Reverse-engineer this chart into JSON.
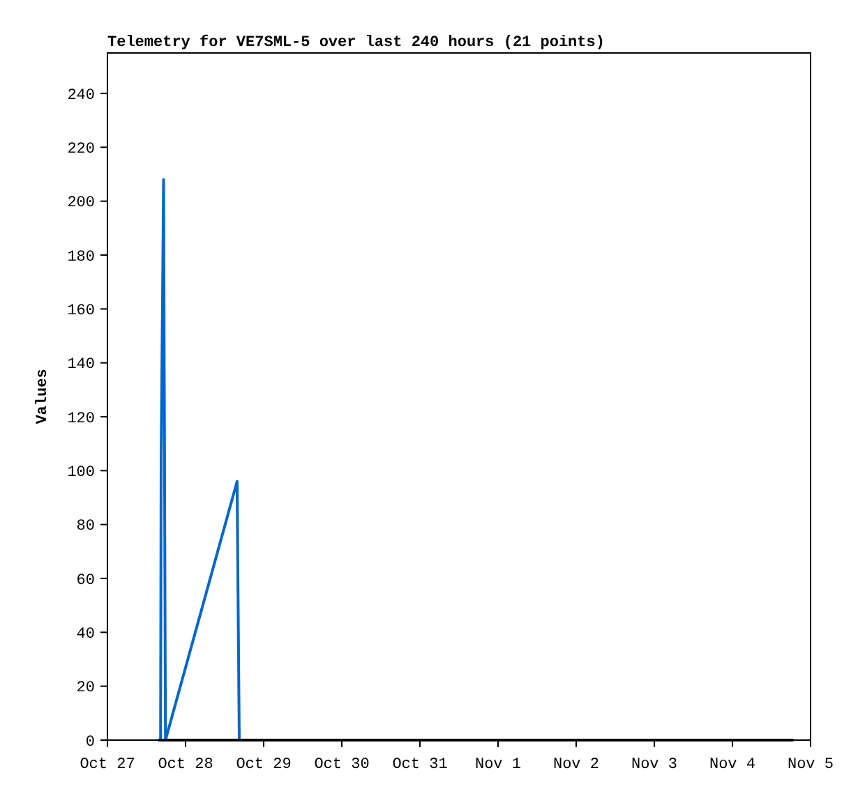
{
  "chart_data": {
    "type": "line",
    "title": "Telemetry for VE7SML-5 over last 240 hours (21 points)",
    "ylabel": "Values",
    "xlim": [
      "--10-27",
      "--11-05"
    ],
    "xticks": [
      {
        "value": "--10-27",
        "label": "Oct 27"
      },
      {
        "value": "--10-28",
        "label": "Oct 28"
      },
      {
        "value": "--10-29",
        "label": "Oct 29"
      },
      {
        "value": "--10-30",
        "label": "Oct 30"
      },
      {
        "value": "--10-31",
        "label": "Oct 31"
      },
      {
        "value": "--11-01",
        "label": "Nov 1"
      },
      {
        "value": "--11-02",
        "label": "Nov 2"
      },
      {
        "value": "--11-03",
        "label": "Nov 3"
      },
      {
        "value": "--11-04",
        "label": "Nov 4"
      },
      {
        "value": "--11-05",
        "label": "Nov 5"
      }
    ],
    "ylim": [
      0,
      255
    ],
    "yticks": [
      0,
      20,
      40,
      60,
      80,
      100,
      120,
      140,
      160,
      180,
      200,
      220,
      240
    ],
    "grid": false,
    "marker": "none",
    "line_style": "solid",
    "series": [
      {
        "color": "#0066cc",
        "x": [
          "--10-27T16:20",
          "--10-27T16:30",
          "--10-27T17:15",
          "--10-27T17:50",
          "--10-28T15:50",
          "--10-28T16:10",
          "--10-28T16:30"
        ],
        "values": [
          0,
          104,
          208,
          0,
          96,
          48,
          0
        ]
      },
      {
        "color": "#000000",
        "x": [
          "--10-27T15:40",
          "--11-04T18:45"
        ],
        "values": [
          0,
          0
        ]
      }
    ]
  }
}
